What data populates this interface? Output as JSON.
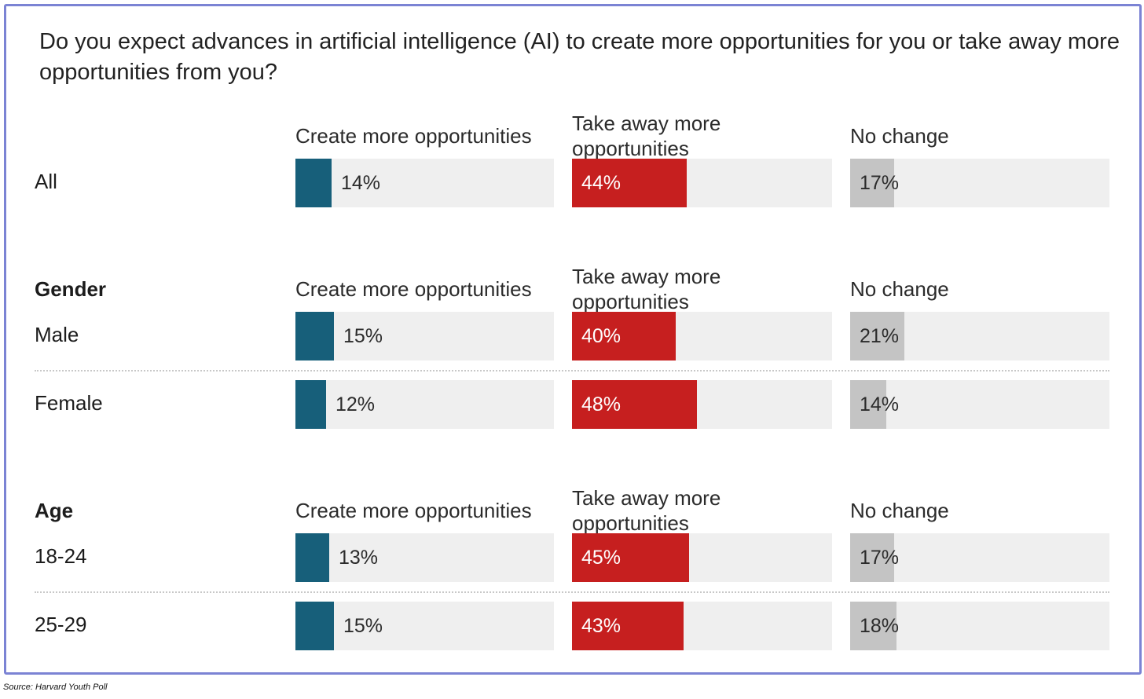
{
  "question": "Do you expect advances in artificial intelligence (AI) to create more opportunities for you or take away more opportunities from you?",
  "columns": [
    "Create more opportunities",
    "Take away more opportunities",
    "No change"
  ],
  "groups": [
    {
      "label": "",
      "rows": [
        {
          "label": "All",
          "values": [
            14,
            44,
            17
          ]
        }
      ]
    },
    {
      "label": "Gender",
      "rows": [
        {
          "label": "Male",
          "values": [
            15,
            40,
            21
          ]
        },
        {
          "label": "Female",
          "values": [
            12,
            48,
            14
          ]
        }
      ]
    },
    {
      "label": "Age",
      "rows": [
        {
          "label": "18-24",
          "values": [
            13,
            45,
            17
          ]
        },
        {
          "label": "25-29",
          "values": [
            15,
            43,
            18
          ]
        }
      ]
    }
  ],
  "source": "Source: Harvard Youth Poll",
  "colors": {
    "create": "#175f7a",
    "take": "#c61f1f",
    "nochange": "#c4c4c4",
    "track": "#efefef",
    "border": "#7b83d4"
  },
  "chart_data": {
    "type": "bar",
    "orientation": "horizontal",
    "title": "Do you expect advances in artificial intelligence (AI) to create more opportunities for you or take away more opportunities from you?",
    "categories": [
      "All",
      "Male",
      "Female",
      "18-24",
      "25-29"
    ],
    "series": [
      {
        "name": "Create more opportunities",
        "values": [
          14,
          15,
          12,
          13,
          15
        ]
      },
      {
        "name": "Take away more opportunities",
        "values": [
          44,
          40,
          48,
          45,
          43
        ]
      },
      {
        "name": "No change",
        "values": [
          17,
          21,
          14,
          17,
          18
        ]
      }
    ],
    "xlim": [
      0,
      100
    ],
    "unit": "%",
    "source": "Source: Harvard Youth Poll"
  }
}
